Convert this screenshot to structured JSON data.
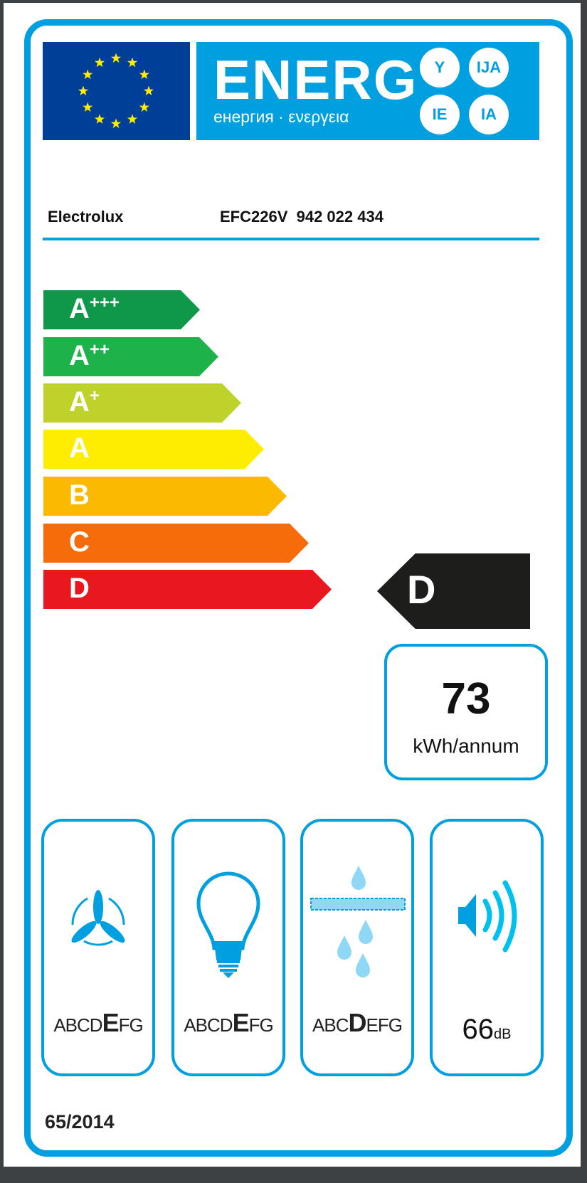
{
  "header": {
    "energ": "ENERG",
    "subtitle": "енергия · ενεργεια",
    "circles": [
      "Y",
      "IJA",
      "IE",
      "IA"
    ]
  },
  "product": {
    "brand": "Electrolux",
    "model": "EFC226V  942 022 434"
  },
  "scale": {
    "classes": [
      {
        "letter": "A",
        "plus": "+++",
        "color": "#10984a"
      },
      {
        "letter": "A",
        "plus": "++",
        "color": "#1db34a"
      },
      {
        "letter": "A",
        "plus": "+",
        "color": "#bfd22b"
      },
      {
        "letter": "A",
        "plus": "",
        "color": "#ffed00"
      },
      {
        "letter": "B",
        "plus": "",
        "color": "#fbb900"
      },
      {
        "letter": "C",
        "plus": "",
        "color": "#f76c0a"
      },
      {
        "letter": "D",
        "plus": "",
        "color": "#e8181f"
      }
    ]
  },
  "rating": {
    "class": "D"
  },
  "consumption": {
    "value": "73",
    "unit": "kWh/annum"
  },
  "pictograms": [
    {
      "icon": "fan-icon",
      "pre": "ABCD",
      "active": "E",
      "post": "FG"
    },
    {
      "icon": "light-bulb-icon",
      "pre": "ABCD",
      "active": "E",
      "post": "FG"
    },
    {
      "icon": "grease-filter-icon",
      "pre": "ABC",
      "active": "D",
      "post": "EFG"
    },
    {
      "icon": "speaker-icon",
      "value": "66",
      "unit": "dB"
    }
  ],
  "regulation": "65/2014",
  "colors": {
    "blue": "#00a0e0",
    "flag": "#003f98",
    "star": "#ffed00"
  }
}
